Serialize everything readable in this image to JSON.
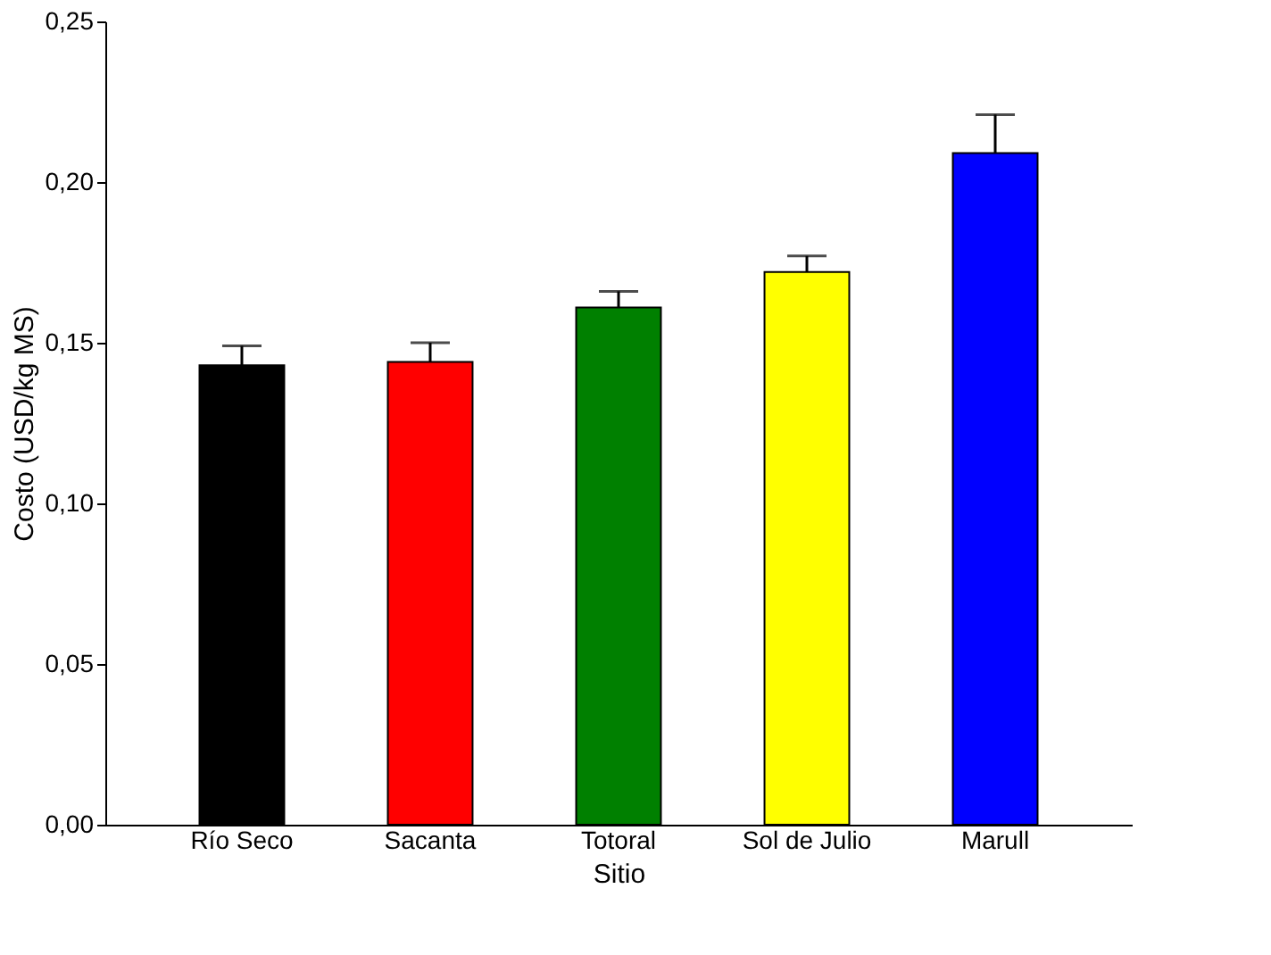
{
  "chart_data": {
    "type": "bar",
    "categories": [
      "Río Seco",
      "Sacanta",
      "Totoral",
      "Sol de Julio",
      "Marull"
    ],
    "values": [
      0.143,
      0.144,
      0.161,
      0.172,
      0.209
    ],
    "colors": [
      "#000000",
      "#ff0000",
      "#008000",
      "#ffff00",
      "#0000ff"
    ],
    "errors": [
      [
        0.143,
        0.149
      ],
      [
        0.144,
        0.15
      ],
      [
        0.161,
        0.166
      ],
      [
        0.172,
        0.177
      ],
      [
        0.209,
        0.221
      ]
    ],
    "xlabel": "Sitio",
    "ylabel": "Costo (USD/kg MS)",
    "ylim": [
      0,
      0.25
    ],
    "yticks": [
      {
        "value": 0,
        "label": "0,00"
      },
      {
        "value": 0.05,
        "label": "0,05"
      },
      {
        "value": 0.1,
        "label": "0,10"
      },
      {
        "value": 0.15,
        "label": "0,15"
      },
      {
        "value": 0.2,
        "label": "0,20"
      },
      {
        "value": 0.25,
        "label": "0,25"
      }
    ],
    "grid": false
  }
}
